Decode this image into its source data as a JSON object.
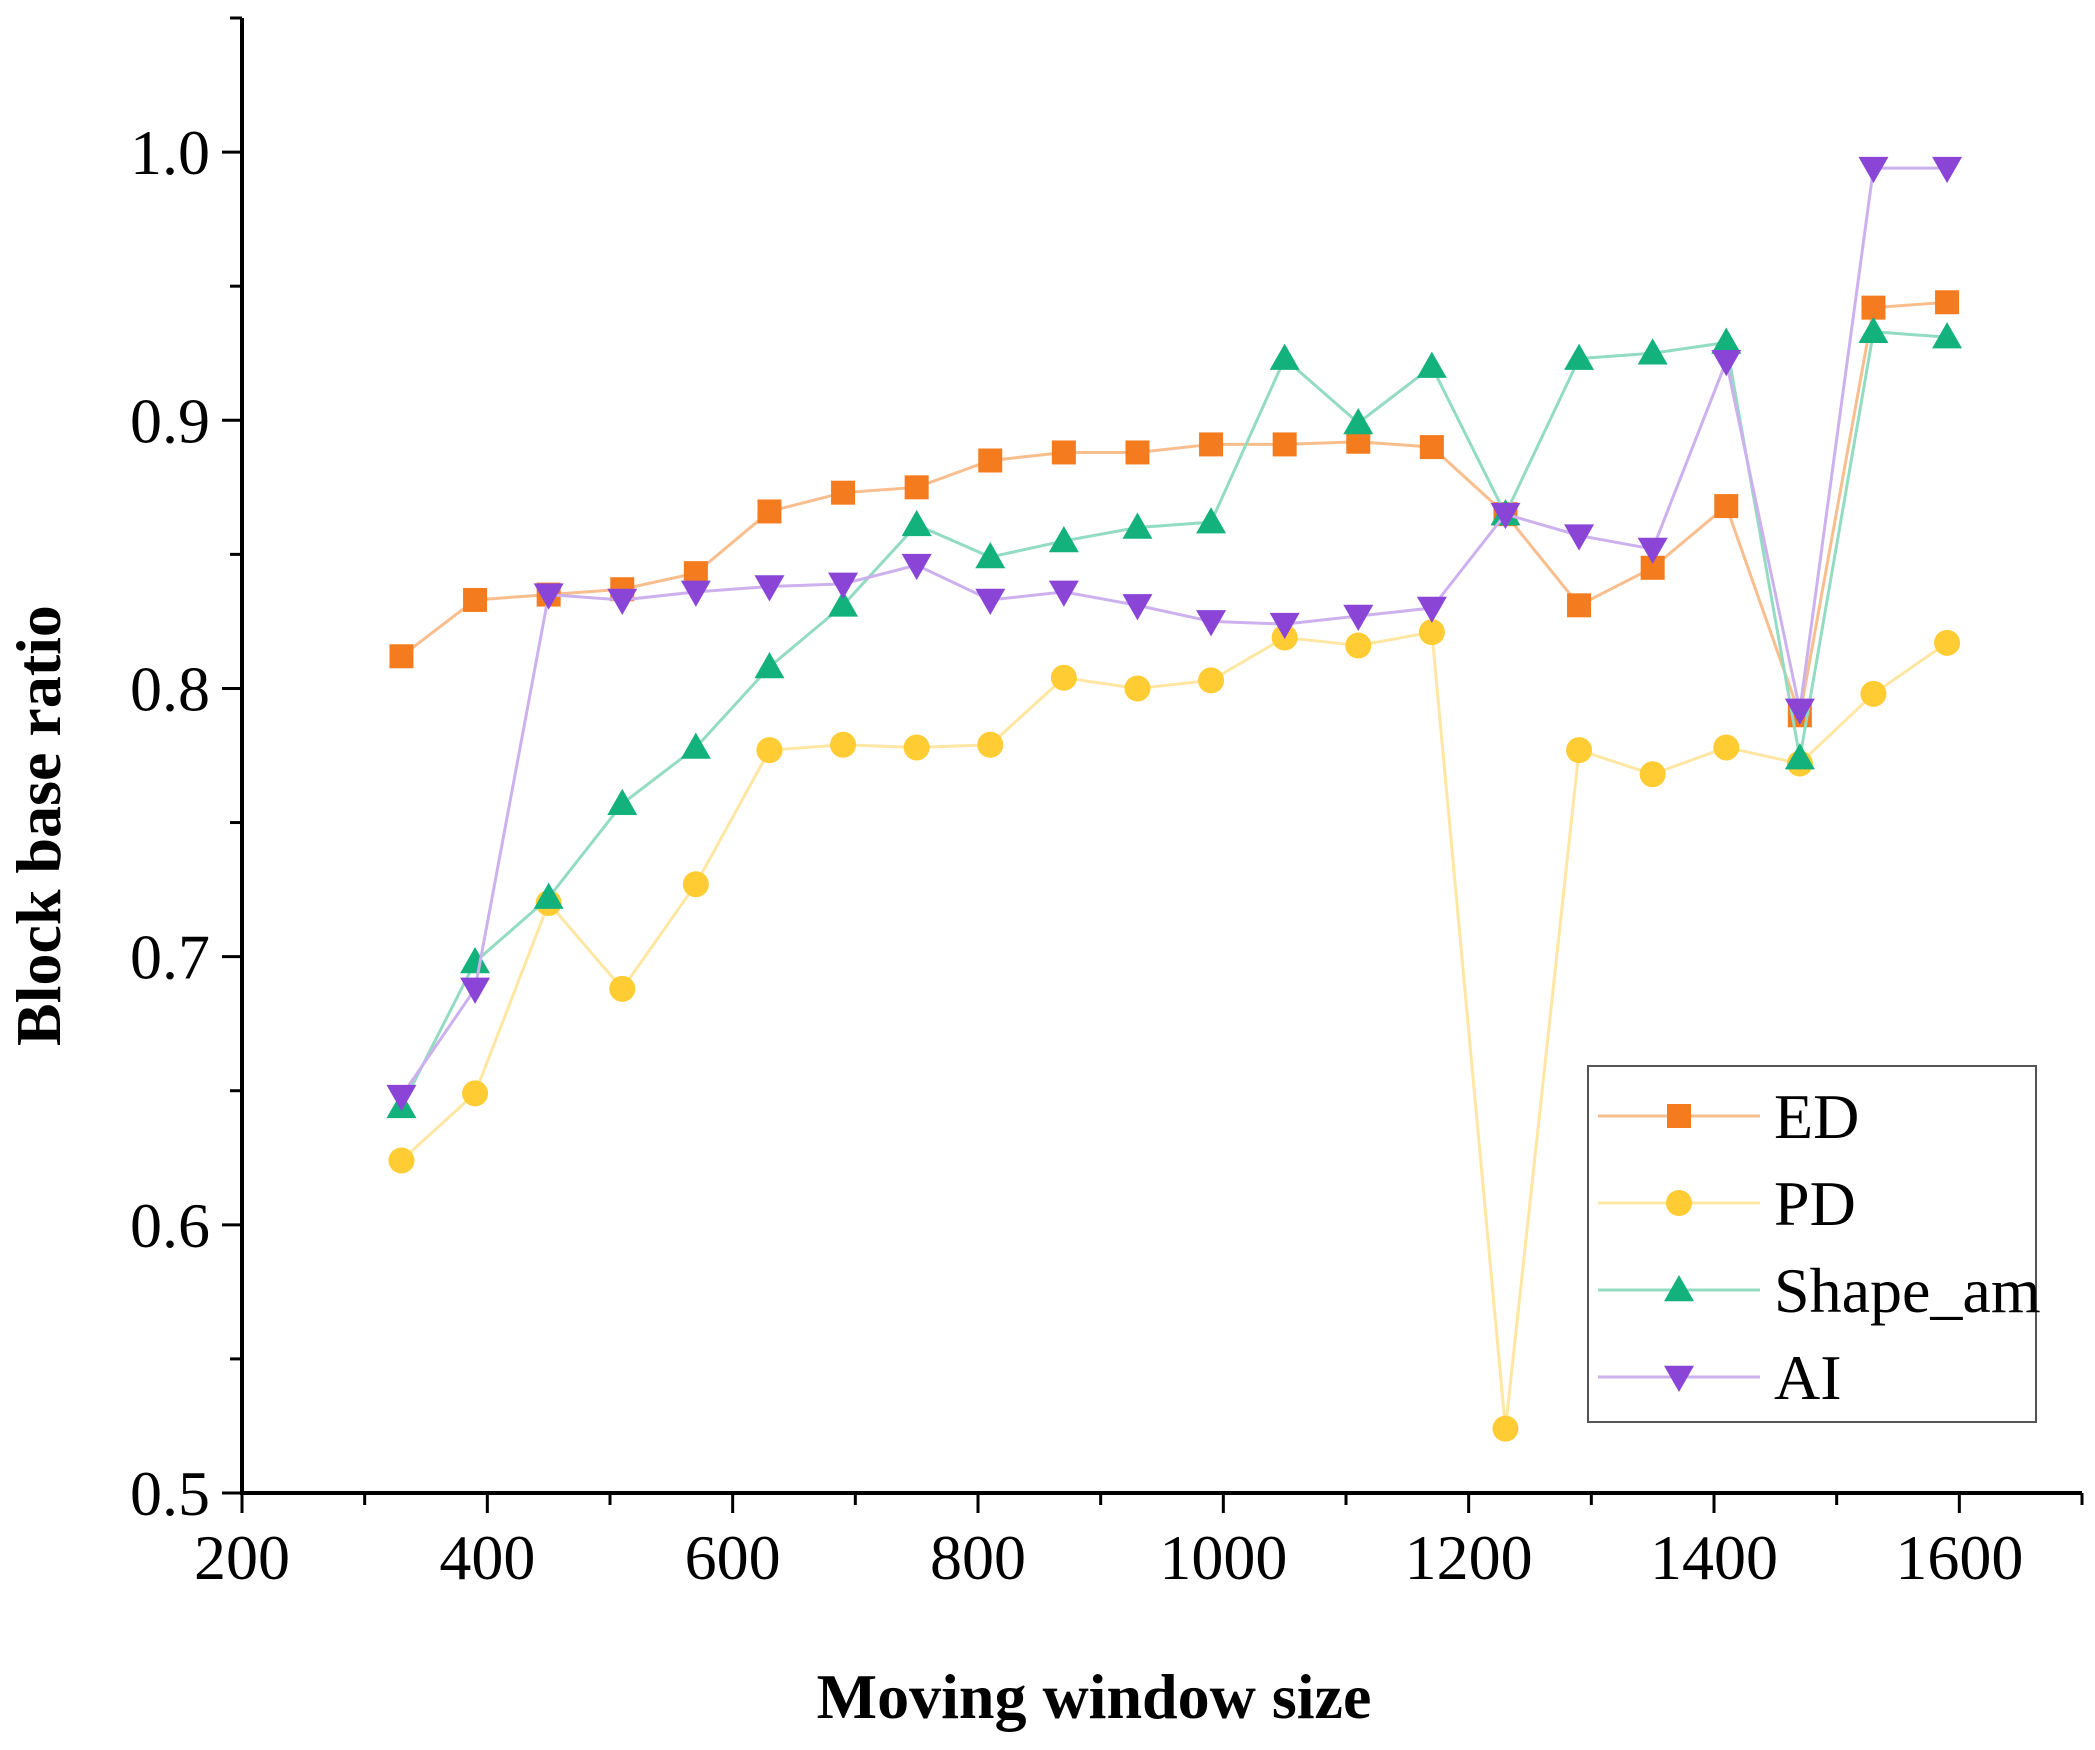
{
  "chart_data": {
    "type": "line",
    "title": "",
    "xlabel": "Moving window size",
    "ylabel": "Block base ratio",
    "xlim": [
      200,
      1700
    ],
    "ylim": [
      0.5,
      1.05
    ],
    "x_ticks": [
      200,
      400,
      600,
      800,
      1000,
      1200,
      1400,
      1600
    ],
    "x_tick_labels": [
      "200",
      "400",
      "600",
      "800",
      "1000",
      "1200",
      "1400",
      "1600"
    ],
    "y_ticks": [
      0.5,
      0.6,
      0.7,
      0.8,
      0.9,
      1.0
    ],
    "y_tick_labels": [
      "0.5",
      "0.6",
      "0.7",
      "0.8",
      "0.9",
      "1.0"
    ],
    "grid": false,
    "legend_position": "bottom-right",
    "x": [
      330,
      390,
      450,
      510,
      570,
      630,
      690,
      750,
      810,
      870,
      930,
      990,
      1050,
      1110,
      1170,
      1230,
      1290,
      1350,
      1410,
      1470,
      1530,
      1590
    ],
    "series": [
      {
        "name": "ED",
        "color": "#F47C1E",
        "line_color": "#F9BE8E",
        "marker": "square",
        "values": [
          0.812,
          0.833,
          0.835,
          0.837,
          0.843,
          0.866,
          0.873,
          0.875,
          0.885,
          0.888,
          0.888,
          0.891,
          0.891,
          0.892,
          0.89,
          0.865,
          0.831,
          0.845,
          0.868,
          0.79,
          0.942,
          0.944
        ]
      },
      {
        "name": "PD",
        "color": "#FFCC33",
        "line_color": "#FFE7A3",
        "marker": "circle",
        "values": [
          0.624,
          0.649,
          0.72,
          0.688,
          0.727,
          0.777,
          0.779,
          0.778,
          0.779,
          0.804,
          0.8,
          0.803,
          0.819,
          0.816,
          0.821,
          0.524,
          0.777,
          0.768,
          0.778,
          0.772,
          0.798,
          0.817
        ]
      },
      {
        "name": "Shape_am",
        "color": "#13B27D",
        "line_color": "#93DCC2",
        "marker": "triangle-up",
        "values": [
          0.644,
          0.698,
          0.722,
          0.757,
          0.778,
          0.808,
          0.831,
          0.861,
          0.849,
          0.855,
          0.86,
          0.862,
          0.923,
          0.899,
          0.92,
          0.865,
          0.923,
          0.925,
          0.929,
          0.774,
          0.933,
          0.931
        ]
      },
      {
        "name": "AI",
        "color": "#8B45D6",
        "line_color": "#CDB1EE",
        "marker": "triangle-down",
        "values": [
          0.648,
          0.688,
          0.835,
          0.833,
          0.836,
          0.838,
          0.839,
          0.846,
          0.833,
          0.836,
          0.831,
          0.825,
          0.824,
          0.827,
          0.83,
          0.865,
          0.857,
          0.852,
          0.922,
          0.792,
          0.994,
          0.994
        ]
      }
    ]
  }
}
